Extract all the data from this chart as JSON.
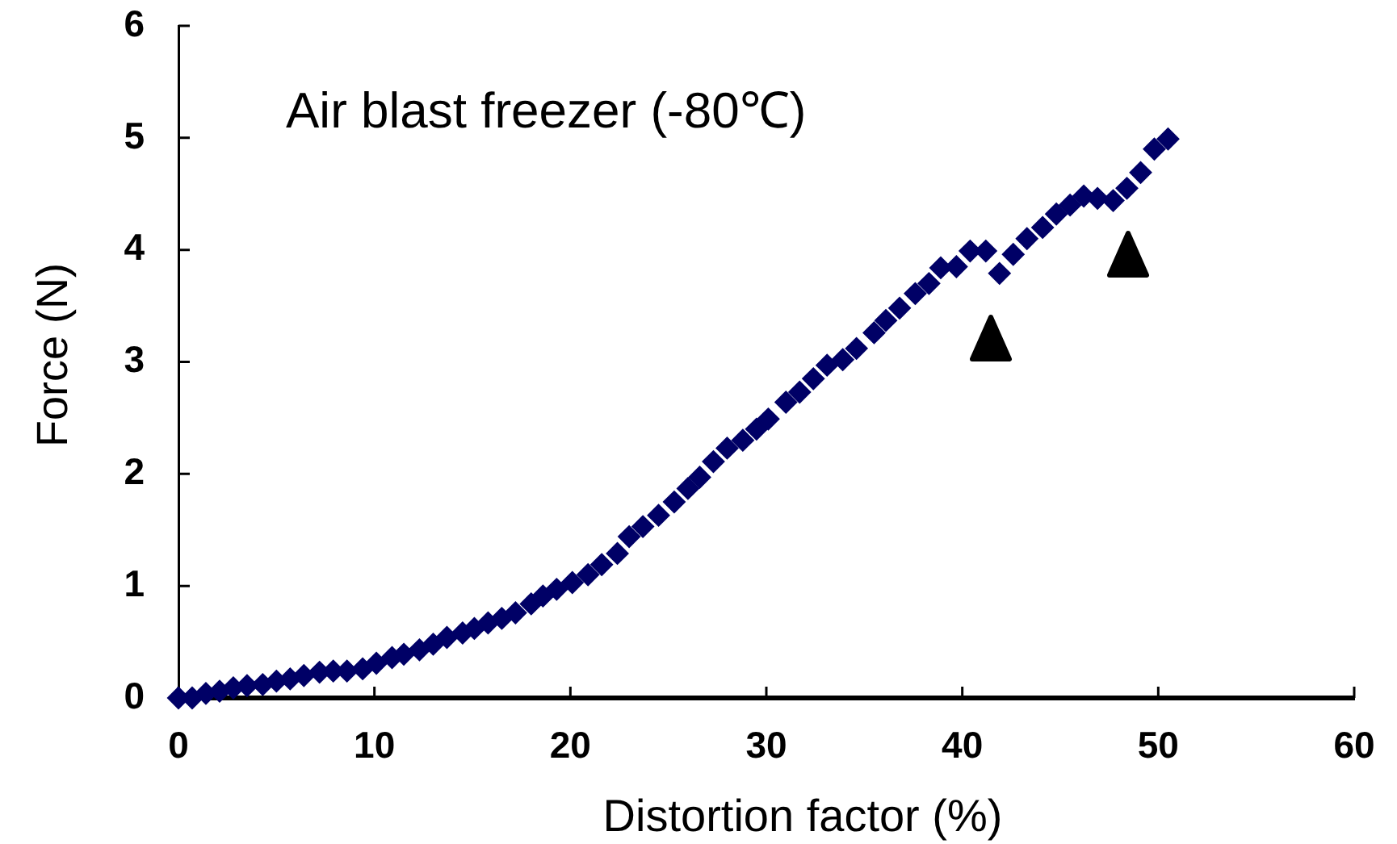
{
  "chart_data": {
    "type": "scatter",
    "title": "Air blast freezer (-80℃)",
    "xlabel": "Distortion factor (%)",
    "ylabel": "Force (N)",
    "x": [
      0,
      0.7,
      1.4,
      2.1,
      2.8,
      3.5,
      4.3,
      5.0,
      5.7,
      6.4,
      7.2,
      7.9,
      8.6,
      9.4,
      10.1,
      10.9,
      11.5,
      12.3,
      13.0,
      13.7,
      14.5,
      15.1,
      15.8,
      16.5,
      17.2,
      18.0,
      18.6,
      19.3,
      20.1,
      20.9,
      21.6,
      22.4,
      23.0,
      23.7,
      24.5,
      25.3,
      26.0,
      26.6,
      27.3,
      28.0,
      28.8,
      29.5,
      30.1,
      31.0,
      31.7,
      32.4,
      33.1,
      33.9,
      34.6,
      35.5,
      36.1,
      36.8,
      37.6,
      38.3,
      38.9,
      39.7,
      40.4,
      41.2,
      41.9,
      42.6,
      43.3,
      44.1,
      44.8,
      45.5,
      46.2,
      46.9,
      47.7,
      48.4,
      49.1,
      49.8,
      50.5
    ],
    "values": [
      0,
      0,
      0.04,
      0.06,
      0.09,
      0.11,
      0.12,
      0.15,
      0.17,
      0.2,
      0.23,
      0.24,
      0.24,
      0.26,
      0.31,
      0.36,
      0.39,
      0.43,
      0.48,
      0.54,
      0.58,
      0.62,
      0.67,
      0.71,
      0.76,
      0.84,
      0.91,
      0.97,
      1.03,
      1.1,
      1.19,
      1.29,
      1.44,
      1.53,
      1.63,
      1.75,
      1.87,
      1.97,
      2.11,
      2.23,
      2.3,
      2.4,
      2.49,
      2.64,
      2.73,
      2.85,
      2.97,
      3.02,
      3.12,
      3.26,
      3.37,
      3.48,
      3.61,
      3.7,
      3.84,
      3.85,
      3.99,
      3.99,
      3.79,
      3.96,
      4.1,
      4.2,
      4.32,
      4.4,
      4.48,
      4.46,
      4.44,
      4.55,
      4.69,
      4.9,
      4.99
    ],
    "color": "#000066",
    "marker": "diamond",
    "xlim": [
      0,
      60
    ],
    "ylim": [
      0,
      6
    ],
    "xticks": [
      0,
      10,
      20,
      30,
      40,
      50,
      60
    ],
    "yticks": [
      0,
      1,
      2,
      3,
      4,
      5,
      6
    ]
  }
}
